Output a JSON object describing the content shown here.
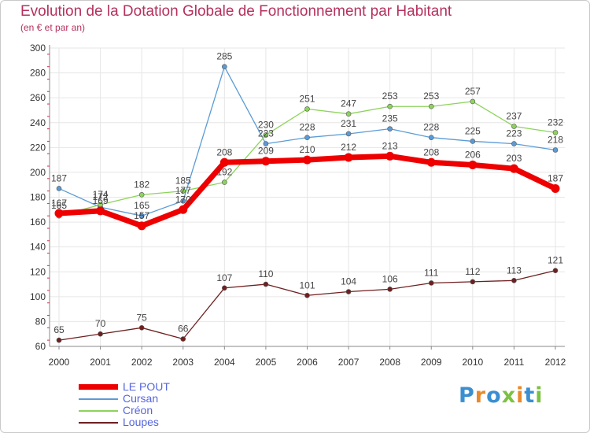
{
  "header": {
    "title": "Evolution de la Dotation Globale de Fonctionnement par Habitant",
    "subtitle": "(en € et par an)"
  },
  "colors": {
    "title": "#b5315e",
    "legend_text": "#5566dd",
    "axis": "#888888",
    "grid": "#e6e6e6"
  },
  "chart_data": {
    "type": "line",
    "title": "Evolution de la Dotation Globale de Fonctionnement par Habitant",
    "subtitle": "(en € et par an)",
    "xlabel": "",
    "ylabel": "",
    "x": [
      "2000",
      "2001",
      "2002",
      "2003",
      "2004",
      "2005",
      "2006",
      "2007",
      "2008",
      "2009",
      "2010",
      "2011",
      "2012"
    ],
    "ylim": [
      60,
      300
    ],
    "yticks": [
      60,
      80,
      100,
      120,
      140,
      160,
      180,
      200,
      220,
      240,
      260,
      280,
      300
    ],
    "grid": true,
    "legend_position": "bottom-left",
    "series": [
      {
        "name": "LE POUT",
        "color": "#ee0000",
        "values": [
          167,
          169,
          157,
          170,
          208,
          209,
          210,
          212,
          213,
          208,
          206,
          203,
          187
        ]
      },
      {
        "name": "Cursan",
        "color": "#5b9bd5",
        "values": [
          187,
          172,
          165,
          177,
          285,
          223,
          228,
          231,
          235,
          228,
          225,
          223,
          218
        ]
      },
      {
        "name": "Créon",
        "color": "#8cd35b",
        "values": [
          165,
          174,
          182,
          185,
          192,
          230,
          251,
          247,
          253,
          253,
          257,
          237,
          232
        ]
      },
      {
        "name": "Loupes",
        "color": "#6e1f1f",
        "values": [
          65,
          70,
          75,
          66,
          107,
          110,
          101,
          104,
          106,
          111,
          112,
          113,
          121
        ]
      }
    ]
  },
  "logo": {
    "letters": [
      {
        "char": "P",
        "color": "#3a8fd0"
      },
      {
        "char": "r",
        "color": "#e8892b"
      },
      {
        "char": "o",
        "color": "#3a8fd0"
      },
      {
        "char": "x",
        "color": "#7cc242"
      },
      {
        "char": "i",
        "color": "#e8892b"
      },
      {
        "char": "t",
        "color": "#3a8fd0"
      },
      {
        "char": "i",
        "color": "#7cc242"
      }
    ]
  }
}
